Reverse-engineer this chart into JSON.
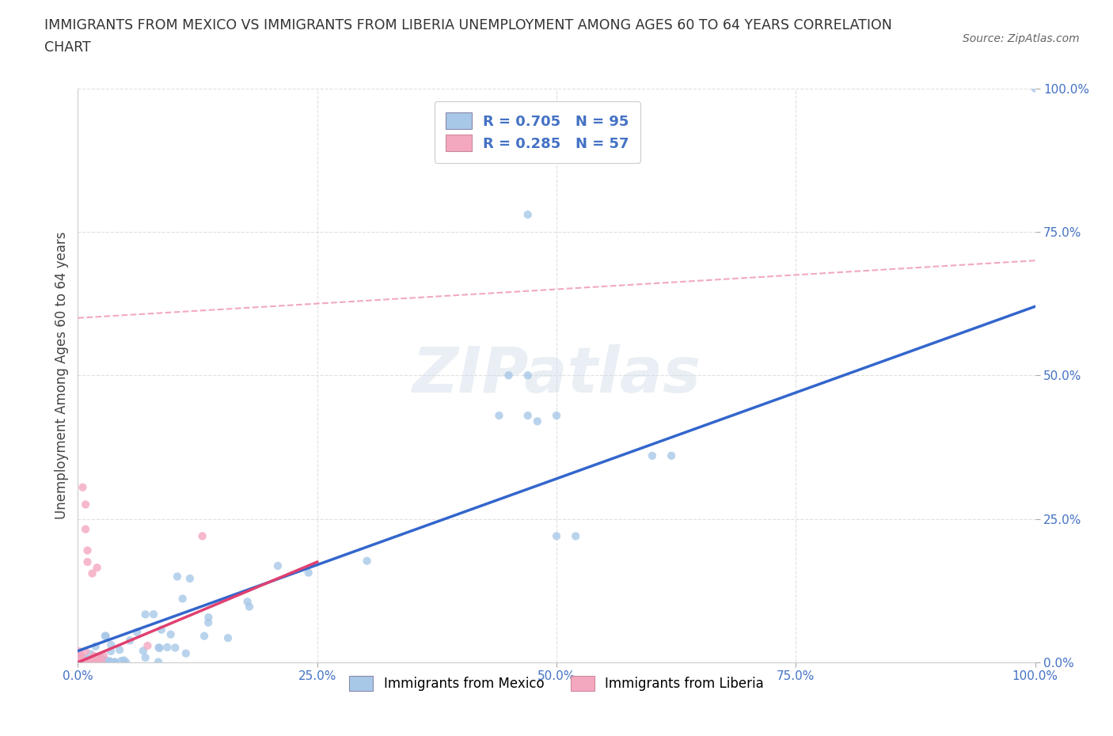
{
  "title_line1": "IMMIGRANTS FROM MEXICO VS IMMIGRANTS FROM LIBERIA UNEMPLOYMENT AMONG AGES 60 TO 64 YEARS CORRELATION",
  "title_line2": "CHART",
  "source": "Source: ZipAtlas.com",
  "ylabel": "Unemployment Among Ages 60 to 64 years",
  "xlim": [
    0.0,
    1.0
  ],
  "ylim": [
    0.0,
    1.0
  ],
  "xticks": [
    0.0,
    0.25,
    0.5,
    0.75,
    1.0
  ],
  "yticks": [
    0.0,
    0.25,
    0.5,
    0.75,
    1.0
  ],
  "xticklabels": [
    "0.0%",
    "25.0%",
    "50.0%",
    "75.0%",
    "100.0%"
  ],
  "yticklabels": [
    "0.0%",
    "25.0%",
    "50.0%",
    "75.0%",
    "100.0%"
  ],
  "mexico_color": "#a8c8e8",
  "liberia_color": "#f4a8c0",
  "mexico_line_color": "#3366cc",
  "liberia_line_color": "#e04070",
  "liberia_dash_color": "#f0a0b8",
  "R_mexico": 0.705,
  "N_mexico": 95,
  "R_liberia": 0.285,
  "N_liberia": 57,
  "tick_color": "#4472c4",
  "watermark": "ZIPatlas",
  "background_color": "#ffffff",
  "grid_color": "#cccccc",
  "legend_label_mexico": "R = 0.705   N = 95",
  "legend_label_liberia": "R = 0.285   N = 57",
  "bottom_label_mexico": "Immigrants from Mexico",
  "bottom_label_liberia": "Immigrants from Liberia"
}
